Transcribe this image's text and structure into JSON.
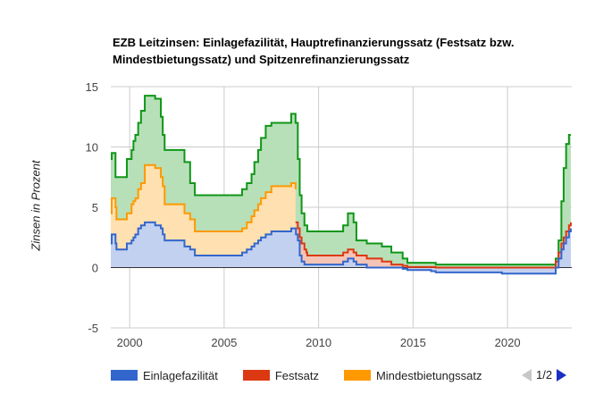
{
  "chart_data": {
    "type": "area",
    "title": "EZB Leitzinsen: Einlagefazilität, Hauptrefinanzierungssatz (Festsatz bzw. Mindestbietungssatz) und Spitzenrefinanzierungssatz",
    "ylabel": "Zinsen in Prozent",
    "xlabel": "",
    "ylim": [
      -5,
      15
    ],
    "yticks": [
      15,
      10,
      5,
      0,
      -5
    ],
    "xlim": [
      1999,
      2023.4
    ],
    "xticks": [
      2000,
      2005,
      2010,
      2015,
      2020
    ],
    "grid": true,
    "legend_position": "bottom",
    "legend_page": "1/2",
    "colors": {
      "einlage_line": "#3366cc",
      "einlage_fill": "#c3d1f0",
      "fest_line": "#dc3912",
      "fest_fill": "#f4c4b6",
      "mindest_line": "#ff9900",
      "mindest_fill": "#ffe0b0",
      "spitzen_line": "#109618",
      "spitzen_fill": "#b7e0b9"
    },
    "series": [
      {
        "name": "Einlagefazilität",
        "points": [
          [
            1999.0,
            2.0
          ],
          [
            1999.05,
            2.75
          ],
          [
            1999.25,
            2.0
          ],
          [
            1999.3,
            1.5
          ],
          [
            1999.85,
            2.0
          ],
          [
            2000.1,
            2.25
          ],
          [
            2000.2,
            2.5
          ],
          [
            2000.3,
            2.75
          ],
          [
            2000.45,
            3.25
          ],
          [
            2000.6,
            3.5
          ],
          [
            2000.8,
            3.75
          ],
          [
            2001.35,
            3.5
          ],
          [
            2001.65,
            3.25
          ],
          [
            2001.75,
            2.75
          ],
          [
            2001.85,
            2.25
          ],
          [
            2002.9,
            1.75
          ],
          [
            2003.2,
            1.5
          ],
          [
            2003.45,
            1.0
          ],
          [
            2005.95,
            1.25
          ],
          [
            2006.2,
            1.5
          ],
          [
            2006.45,
            1.75
          ],
          [
            2006.6,
            2.0
          ],
          [
            2006.8,
            2.25
          ],
          [
            2006.95,
            2.5
          ],
          [
            2007.2,
            2.75
          ],
          [
            2007.5,
            3.0
          ],
          [
            2008.55,
            3.25
          ],
          [
            2008.8,
            2.75
          ],
          [
            2008.9,
            2.25
          ],
          [
            2009.0,
            1.0
          ],
          [
            2009.1,
            0.5
          ],
          [
            2009.25,
            0.25
          ],
          [
            2011.3,
            0.5
          ],
          [
            2011.55,
            0.75
          ],
          [
            2011.85,
            0.5
          ],
          [
            2012.0,
            0.25
          ],
          [
            2012.55,
            0.0
          ],
          [
            2014.45,
            -0.1
          ],
          [
            2014.7,
            -0.2
          ],
          [
            2015.95,
            -0.3
          ],
          [
            2016.2,
            -0.4
          ],
          [
            2019.7,
            -0.5
          ],
          [
            2022.55,
            0.0
          ],
          [
            2022.7,
            0.75
          ],
          [
            2022.85,
            1.5
          ],
          [
            2022.97,
            2.0
          ],
          [
            2023.1,
            2.5
          ],
          [
            2023.25,
            3.0
          ],
          [
            2023.35,
            3.25
          ]
        ]
      },
      {
        "name": "Festsatz",
        "points": [
          [
            2008.78,
            3.75
          ],
          [
            2008.9,
            3.25
          ],
          [
            2009.0,
            2.5
          ],
          [
            2009.1,
            2.0
          ],
          [
            2009.25,
            1.5
          ],
          [
            2009.35,
            1.25
          ],
          [
            2009.4,
            1.0
          ],
          [
            2011.3,
            1.25
          ],
          [
            2011.55,
            1.5
          ],
          [
            2011.85,
            1.25
          ],
          [
            2012.0,
            1.0
          ],
          [
            2012.55,
            0.75
          ],
          [
            2013.35,
            0.5
          ],
          [
            2013.85,
            0.25
          ],
          [
            2014.45,
            0.15
          ],
          [
            2014.7,
            0.05
          ],
          [
            2016.2,
            0.0
          ],
          [
            2022.55,
            0.5
          ],
          [
            2022.7,
            1.25
          ],
          [
            2022.85,
            2.0
          ],
          [
            2022.97,
            2.5
          ],
          [
            2023.1,
            3.0
          ],
          [
            2023.25,
            3.5
          ],
          [
            2023.35,
            3.75
          ]
        ]
      },
      {
        "name": "Mindestbietungssatz",
        "points": [
          [
            1999.0,
            4.5
          ],
          [
            1999.05,
            5.75
          ],
          [
            1999.25,
            5.0
          ],
          [
            1999.3,
            4.0
          ],
          [
            1999.85,
            4.5
          ],
          [
            2000.1,
            5.25
          ],
          [
            2000.2,
            5.5
          ],
          [
            2000.3,
            5.75
          ],
          [
            2000.45,
            6.5
          ],
          [
            2000.6,
            7.0
          ],
          [
            2000.8,
            8.5
          ],
          [
            2001.35,
            8.25
          ],
          [
            2001.65,
            7.5
          ],
          [
            2001.75,
            6.75
          ],
          [
            2001.85,
            5.25
          ],
          [
            2002.9,
            4.5
          ],
          [
            2003.2,
            4.0
          ],
          [
            2003.45,
            3.0
          ],
          [
            2005.95,
            3.25
          ],
          [
            2006.2,
            3.75
          ],
          [
            2006.45,
            4.25
          ],
          [
            2006.6,
            4.75
          ],
          [
            2006.8,
            5.25
          ],
          [
            2006.95,
            5.75
          ],
          [
            2007.2,
            6.25
          ],
          [
            2007.5,
            6.75
          ],
          [
            2008.55,
            7.0
          ],
          [
            2008.78,
            6.5
          ]
        ]
      },
      {
        "name": "Spitzenrefinanzierungssatz",
        "points": [
          [
            1999.0,
            9.0
          ],
          [
            1999.05,
            9.5
          ],
          [
            1999.25,
            7.5
          ],
          [
            1999.85,
            9.0
          ],
          [
            2000.1,
            9.75
          ],
          [
            2000.2,
            10.5
          ],
          [
            2000.3,
            11.0
          ],
          [
            2000.45,
            12.0
          ],
          [
            2000.6,
            13.0
          ],
          [
            2000.8,
            14.25
          ],
          [
            2001.35,
            14.0
          ],
          [
            2001.65,
            12.5
          ],
          [
            2001.75,
            11.0
          ],
          [
            2001.85,
            9.75
          ],
          [
            2002.9,
            8.75
          ],
          [
            2003.2,
            7.0
          ],
          [
            2003.45,
            6.0
          ],
          [
            2005.95,
            6.5
          ],
          [
            2006.2,
            7.0
          ],
          [
            2006.45,
            7.75
          ],
          [
            2006.6,
            8.75
          ],
          [
            2006.8,
            9.75
          ],
          [
            2006.95,
            10.75
          ],
          [
            2007.2,
            11.75
          ],
          [
            2007.5,
            12.0
          ],
          [
            2008.55,
            12.75
          ],
          [
            2008.78,
            12.0
          ],
          [
            2008.9,
            9.0
          ],
          [
            2009.0,
            6.0
          ],
          [
            2009.1,
            4.5
          ],
          [
            2009.25,
            3.5
          ],
          [
            2009.4,
            3.0
          ],
          [
            2011.3,
            3.5
          ],
          [
            2011.55,
            4.5
          ],
          [
            2011.85,
            3.75
          ],
          [
            2012.0,
            2.25
          ],
          [
            2012.55,
            2.0
          ],
          [
            2013.35,
            1.75
          ],
          [
            2013.85,
            1.25
          ],
          [
            2014.45,
            0.75
          ],
          [
            2014.7,
            0.4
          ],
          [
            2016.2,
            0.25
          ],
          [
            2022.55,
            0.75
          ],
          [
            2022.7,
            2.25
          ],
          [
            2022.85,
            5.5
          ],
          [
            2022.97,
            8.25
          ],
          [
            2023.1,
            10.25
          ],
          [
            2023.25,
            11.0
          ],
          [
            2023.35,
            11.0
          ]
        ]
      }
    ]
  },
  "legend": {
    "items": [
      {
        "label": "Einlagefazilität",
        "color": "#3366cc"
      },
      {
        "label": "Festsatz",
        "color": "#dc3912"
      },
      {
        "label": "Mindestbietungssatz",
        "color": "#ff9900"
      }
    ],
    "pager": "1/2"
  }
}
